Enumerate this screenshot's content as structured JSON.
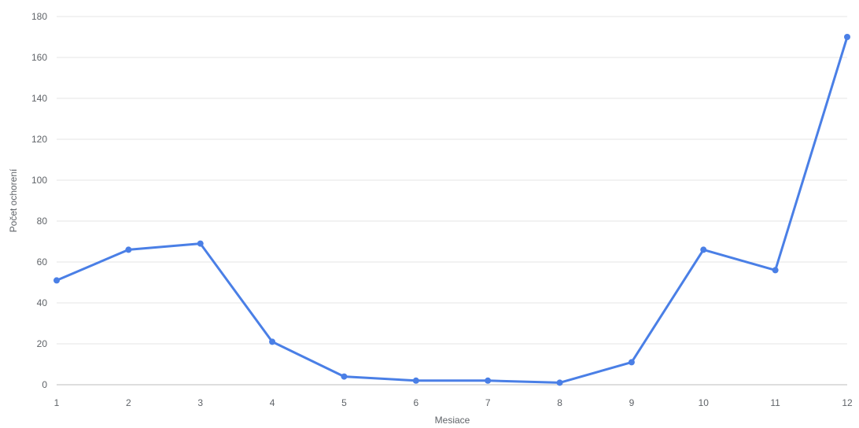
{
  "chart_data": {
    "type": "line",
    "title": "",
    "xlabel": "Mesiace",
    "ylabel": "Počet ochorení",
    "x": [
      1,
      2,
      3,
      4,
      5,
      6,
      7,
      8,
      9,
      10,
      11,
      12
    ],
    "series": [
      {
        "values": [
          51,
          66,
          69,
          21,
          4,
          2,
          2,
          1,
          11,
          66,
          56,
          170
        ]
      }
    ],
    "ylim": [
      0,
      180
    ],
    "yticks": [
      0,
      20,
      40,
      60,
      80,
      100,
      120,
      140,
      160,
      180
    ],
    "grid": true,
    "legend": "none",
    "colors": {
      "series": "#4a7fe6",
      "grid": "#e6e6e6",
      "text": "#5f6368"
    }
  }
}
